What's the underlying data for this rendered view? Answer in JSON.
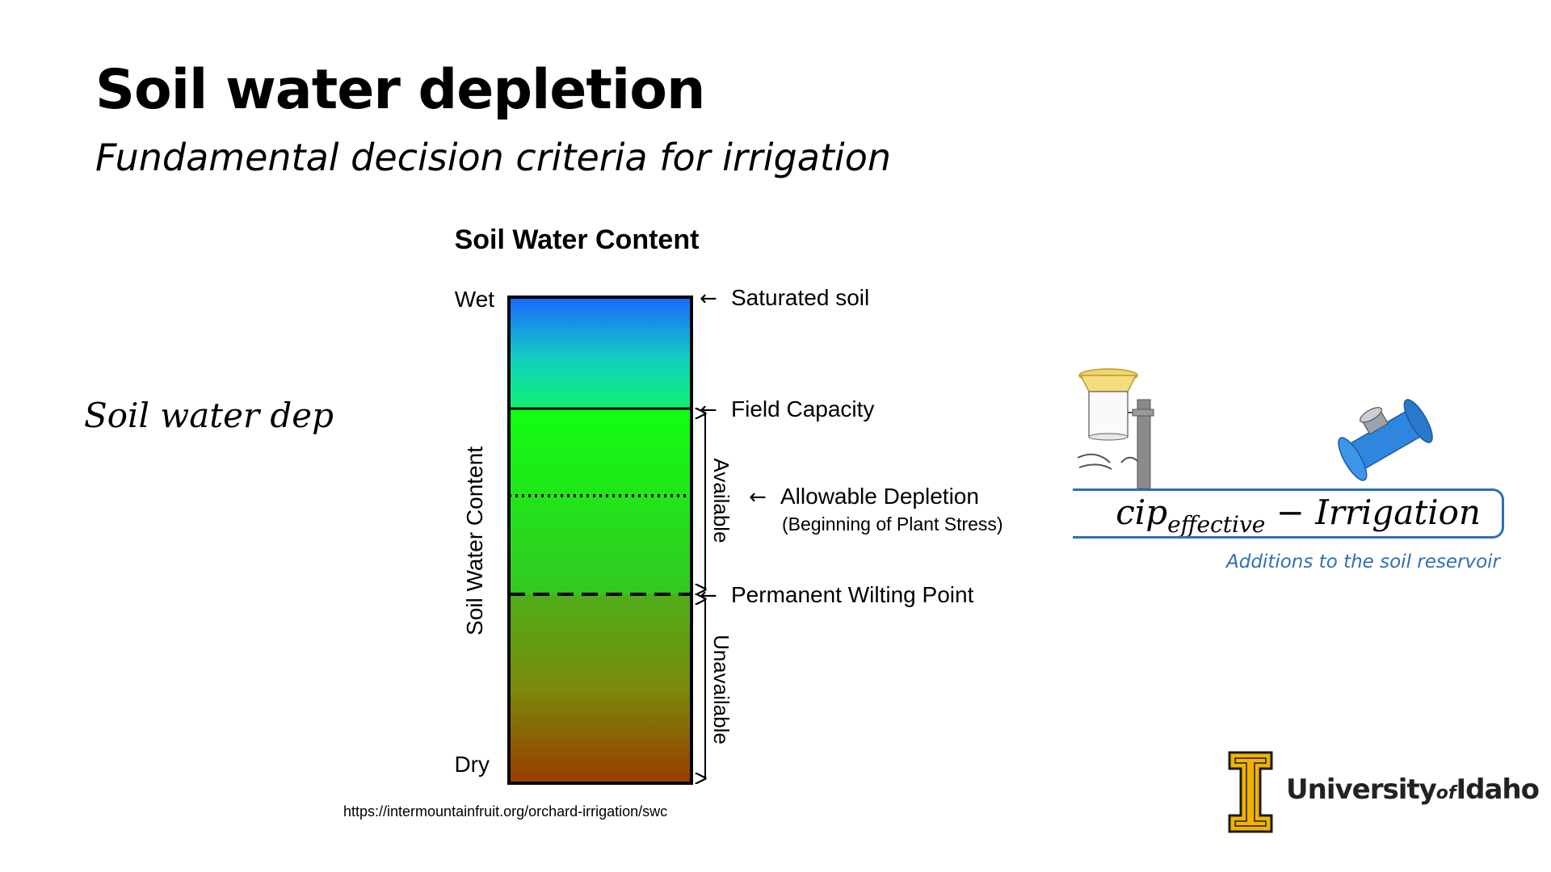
{
  "slide": {
    "title": "Soil water depletion",
    "subtitle": "Fundamental decision criteria for irrigation"
  },
  "equation": {
    "left_visible_text": "Soil water dep",
    "right_main": "cip",
    "right_subscript": "effective",
    "right_rest": " − Irrigation",
    "caption": "Additions to the soil reservoir"
  },
  "diagram": {
    "title": "Soil Water Content",
    "top_label": "Wet",
    "bottom_label": "Dry",
    "axis_label": "Soil Water Content",
    "levels": {
      "saturated": "Saturated soil",
      "field_capacity": "Field Capacity",
      "allowable_depletion": "Allowable Depletion",
      "allowable_depletion_note": "(Beginning of Plant Stress)",
      "wilting_point": "Permanent Wilting Point"
    },
    "ranges": {
      "available": "Available",
      "unavailable": "Unavailable"
    },
    "arrow_glyph": "←"
  },
  "icons": {
    "rain_gauge": "rain-gauge-icon",
    "flow_meter": "flow-meter-icon",
    "logo_mark": "university-i-logo-icon"
  },
  "source_url": "https://intermountainfruit.org/orchard-irrigation/swc",
  "logo": {
    "university": "University",
    "of": "of",
    "idaho": "Idaho"
  },
  "colors": {
    "accent_blue": "#2e6fb7",
    "logo_gold": "#f1b300",
    "wet_blue": "#1a66ff",
    "available_green": "#11ff11",
    "dry_brown": "#9a3c00"
  }
}
